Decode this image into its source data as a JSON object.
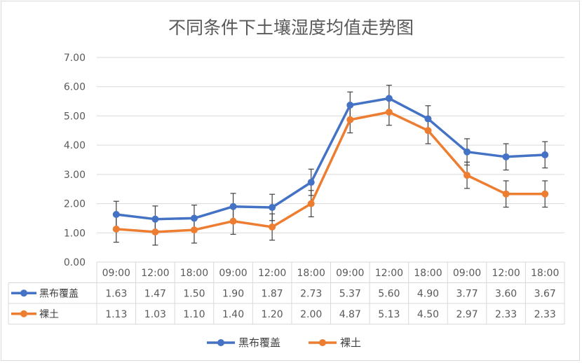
{
  "chart_data": {
    "type": "line",
    "title": "不同条件下土壤湿度均值走势图",
    "categories": [
      "09:00",
      "12:00",
      "18:00",
      "09:00",
      "12:00",
      "18:00",
      "09:00",
      "12:00",
      "18:00",
      "09:00",
      "12:00",
      "18:00"
    ],
    "ylim": [
      0,
      7
    ],
    "yticks": [
      "0.00",
      "1.00",
      "2.00",
      "3.00",
      "4.00",
      "5.00",
      "6.00",
      "7.00"
    ],
    "grid": true,
    "legend_position": "bottom",
    "data_table": true,
    "error_bars": true,
    "series": [
      {
        "name": "黑布覆盖",
        "color": "#4472c4",
        "values": [
          1.63,
          1.47,
          1.5,
          1.9,
          1.87,
          2.73,
          5.37,
          5.6,
          4.9,
          3.77,
          3.6,
          3.67
        ],
        "labels": [
          "1.63",
          "1.47",
          "1.50",
          "1.90",
          "1.87",
          "2.73",
          "5.37",
          "5.60",
          "4.90",
          "3.77",
          "3.60",
          "3.67"
        ],
        "errors": [
          0.45,
          0.45,
          0.45,
          0.45,
          0.45,
          0.45,
          0.45,
          0.45,
          0.45,
          0.45,
          0.45,
          0.45
        ]
      },
      {
        "name": "裸土",
        "color": "#ed7d31",
        "values": [
          1.13,
          1.03,
          1.1,
          1.4,
          1.2,
          2.0,
          4.87,
          5.13,
          4.5,
          2.97,
          2.33,
          2.33
        ],
        "labels": [
          "1.13",
          "1.03",
          "1.10",
          "1.40",
          "1.20",
          "2.00",
          "4.87",
          "5.13",
          "4.50",
          "2.97",
          "2.33",
          "2.33"
        ],
        "errors": [
          0.45,
          0.45,
          0.45,
          0.45,
          0.45,
          0.45,
          0.45,
          0.45,
          0.45,
          0.45,
          0.45,
          0.45
        ]
      }
    ]
  }
}
